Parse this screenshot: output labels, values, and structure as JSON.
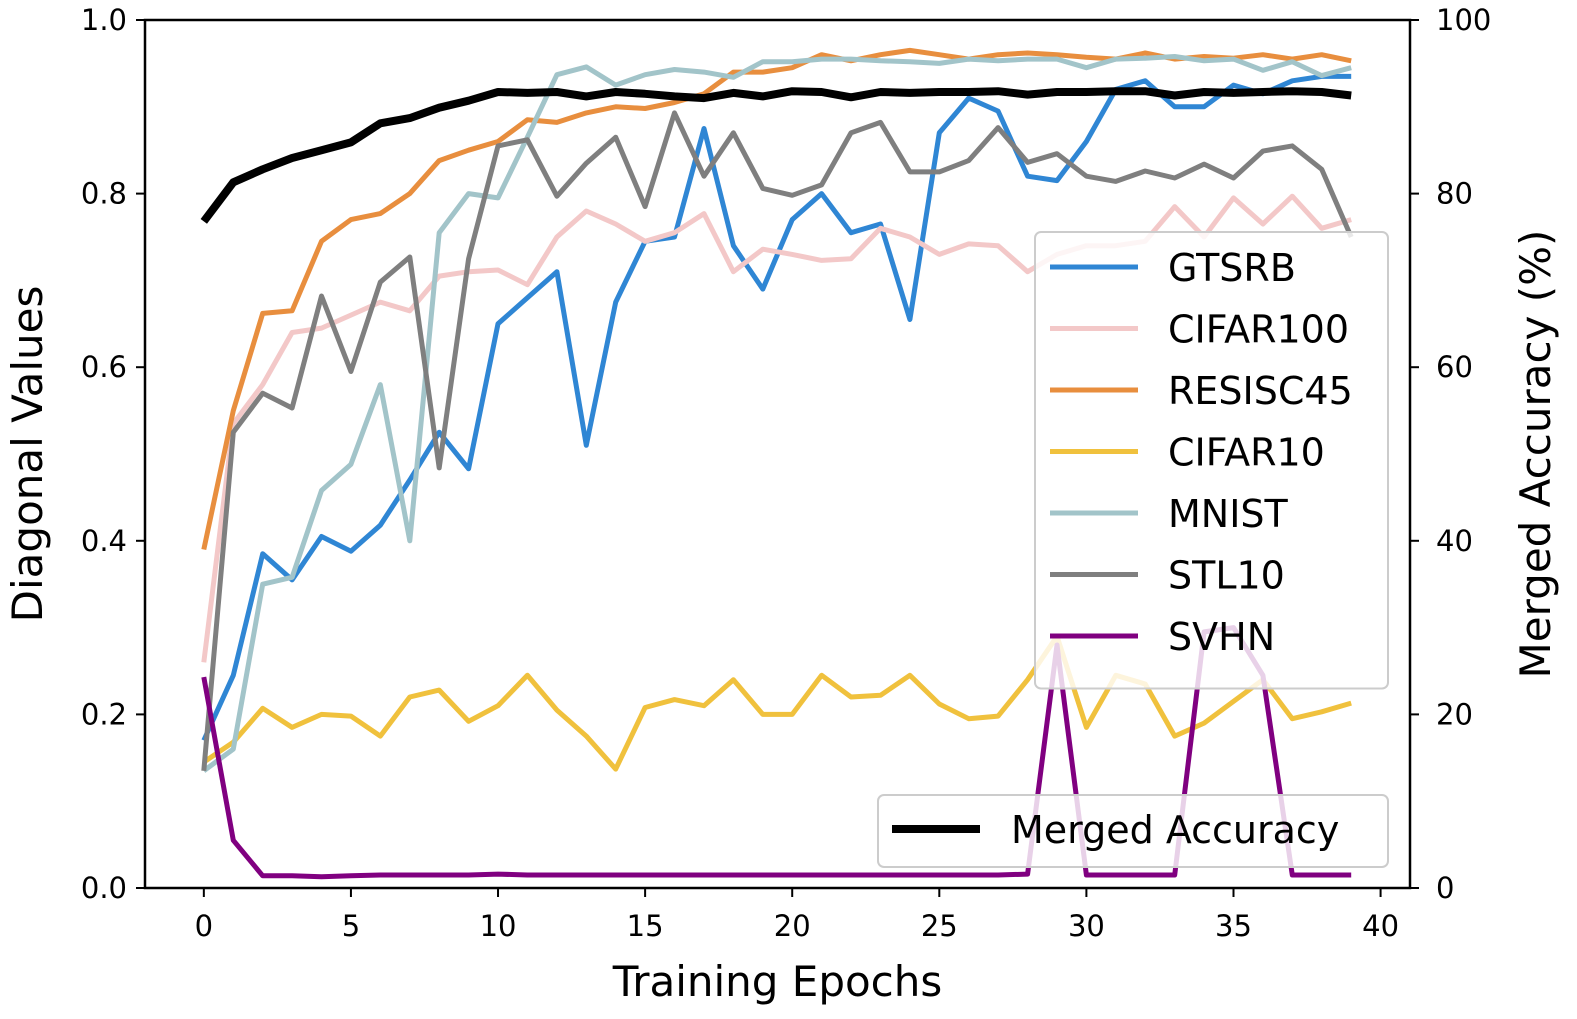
{
  "chart_data": {
    "type": "line",
    "xlabel": "Training Epochs",
    "ylabel_left": "Diagonal Values",
    "ylabel_right": "Merged Accuracy (%)",
    "xlim": [
      -2,
      41
    ],
    "ylim_left": [
      0.0,
      1.0
    ],
    "ylim_right": [
      0,
      100
    ],
    "x_ticks": [
      0,
      5,
      10,
      15,
      20,
      25,
      30,
      35,
      40
    ],
    "y_ticks_left": [
      "0.0",
      "0.2",
      "0.4",
      "0.6",
      "0.8",
      "1.0"
    ],
    "y_ticks_right": [
      "0",
      "20",
      "40",
      "60",
      "80",
      "100"
    ],
    "x": [
      0,
      1,
      2,
      3,
      4,
      5,
      6,
      7,
      8,
      9,
      10,
      11,
      12,
      13,
      14,
      15,
      16,
      17,
      18,
      19,
      20,
      21,
      22,
      23,
      24,
      25,
      26,
      27,
      28,
      29,
      30,
      31,
      32,
      33,
      34,
      35,
      36,
      37,
      38,
      39
    ],
    "series": [
      {
        "name": "GTSRB",
        "color": "#2f86d4",
        "axis": "left",
        "values": [
          0.17,
          0.245,
          0.385,
          0.355,
          0.405,
          0.388,
          0.418,
          0.47,
          0.525,
          0.483,
          0.65,
          0.68,
          0.71,
          0.51,
          0.675,
          0.745,
          0.75,
          0.875,
          0.74,
          0.69,
          0.77,
          0.8,
          0.755,
          0.765,
          0.655,
          0.87,
          0.91,
          0.895,
          0.82,
          0.815,
          0.86,
          0.92,
          0.93,
          0.9,
          0.9,
          0.925,
          0.915,
          0.93,
          0.935,
          0.935
        ]
      },
      {
        "name": "CIFAR100",
        "color": "#f3c8c8",
        "axis": "left",
        "values": [
          0.26,
          0.535,
          0.58,
          0.64,
          0.645,
          0.66,
          0.675,
          0.665,
          0.705,
          0.71,
          0.712,
          0.695,
          0.75,
          0.78,
          0.765,
          0.745,
          0.755,
          0.777,
          0.71,
          0.736,
          0.73,
          0.723,
          0.725,
          0.76,
          0.75,
          0.73,
          0.742,
          0.74,
          0.71,
          0.73,
          0.74,
          0.74,
          0.745,
          0.785,
          0.75,
          0.795,
          0.765,
          0.797,
          0.76,
          0.77
        ]
      },
      {
        "name": "RESISC45",
        "color": "#e88e3e",
        "axis": "left",
        "values": [
          0.39,
          0.55,
          0.662,
          0.665,
          0.745,
          0.77,
          0.777,
          0.8,
          0.838,
          0.85,
          0.86,
          0.885,
          0.882,
          0.893,
          0.9,
          0.898,
          0.905,
          0.915,
          0.94,
          0.94,
          0.945,
          0.96,
          0.953,
          0.96,
          0.965,
          0.96,
          0.955,
          0.96,
          0.962,
          0.96,
          0.957,
          0.955,
          0.962,
          0.955,
          0.958,
          0.956,
          0.96,
          0.955,
          0.96,
          0.953
        ]
      },
      {
        "name": "CIFAR10",
        "color": "#f0c13d",
        "axis": "left",
        "values": [
          0.145,
          0.168,
          0.207,
          0.185,
          0.2,
          0.198,
          0.175,
          0.22,
          0.228,
          0.192,
          0.21,
          0.245,
          0.205,
          0.175,
          0.137,
          0.208,
          0.217,
          0.21,
          0.24,
          0.2,
          0.2,
          0.245,
          0.22,
          0.222,
          0.245,
          0.212,
          0.195,
          0.198,
          0.24,
          0.29,
          0.185,
          0.245,
          0.235,
          0.175,
          0.19,
          0.215,
          0.24,
          0.195,
          0.203,
          0.213
        ]
      },
      {
        "name": "MNIST",
        "color": "#a2c4c9",
        "axis": "left",
        "values": [
          0.135,
          0.16,
          0.35,
          0.358,
          0.458,
          0.488,
          0.58,
          0.4,
          0.755,
          0.8,
          0.795,
          0.865,
          0.937,
          0.946,
          0.925,
          0.937,
          0.943,
          0.94,
          0.934,
          0.952,
          0.952,
          0.955,
          0.955,
          0.953,
          0.952,
          0.95,
          0.955,
          0.953,
          0.955,
          0.955,
          0.945,
          0.955,
          0.956,
          0.958,
          0.953,
          0.955,
          0.942,
          0.952,
          0.936,
          0.945
        ]
      },
      {
        "name": "STL10",
        "color": "#7f7f7f",
        "axis": "left",
        "values": [
          0.135,
          0.525,
          0.57,
          0.553,
          0.682,
          0.595,
          0.698,
          0.727,
          0.484,
          0.725,
          0.855,
          0.862,
          0.797,
          0.835,
          0.865,
          0.785,
          0.893,
          0.82,
          0.87,
          0.806,
          0.798,
          0.81,
          0.87,
          0.882,
          0.825,
          0.825,
          0.838,
          0.876,
          0.836,
          0.846,
          0.82,
          0.814,
          0.826,
          0.818,
          0.834,
          0.818,
          0.849,
          0.855,
          0.828,
          0.75
        ]
      },
      {
        "name": "SVHN",
        "color": "#800080",
        "axis": "left",
        "values": [
          0.243,
          0.055,
          0.014,
          0.014,
          0.013,
          0.014,
          0.015,
          0.015,
          0.015,
          0.015,
          0.016,
          0.015,
          0.015,
          0.015,
          0.015,
          0.015,
          0.015,
          0.015,
          0.015,
          0.015,
          0.015,
          0.015,
          0.015,
          0.015,
          0.015,
          0.015,
          0.015,
          0.015,
          0.016,
          0.28,
          0.015,
          0.015,
          0.015,
          0.015,
          0.295,
          0.3,
          0.245,
          0.015,
          0.015,
          0.015
        ]
      },
      {
        "name": "Merged Accuracy",
        "color": "#000000",
        "axis": "right",
        "values": [
          76.8,
          81.3,
          82.8,
          84.1,
          85,
          85.9,
          88.1,
          88.7,
          89.9,
          90.7,
          91.7,
          91.6,
          91.7,
          91.2,
          91.7,
          91.5,
          91.2,
          91,
          91.6,
          91.2,
          91.8,
          91.7,
          91.1,
          91.7,
          91.6,
          91.7,
          91.7,
          91.8,
          91.4,
          91.7,
          91.7,
          91.8,
          91.8,
          91.3,
          91.7,
          91.6,
          91.7,
          91.8,
          91.7,
          91.3
        ]
      }
    ],
    "legend_main": {
      "placement": "center-right",
      "entries": [
        "GTSRB",
        "CIFAR100",
        "RESISC45",
        "CIFAR10",
        "MNIST",
        "STL10",
        "SVHN"
      ]
    },
    "legend_secondary": {
      "placement": "bottom-right",
      "entries": [
        "Merged Accuracy"
      ]
    }
  }
}
